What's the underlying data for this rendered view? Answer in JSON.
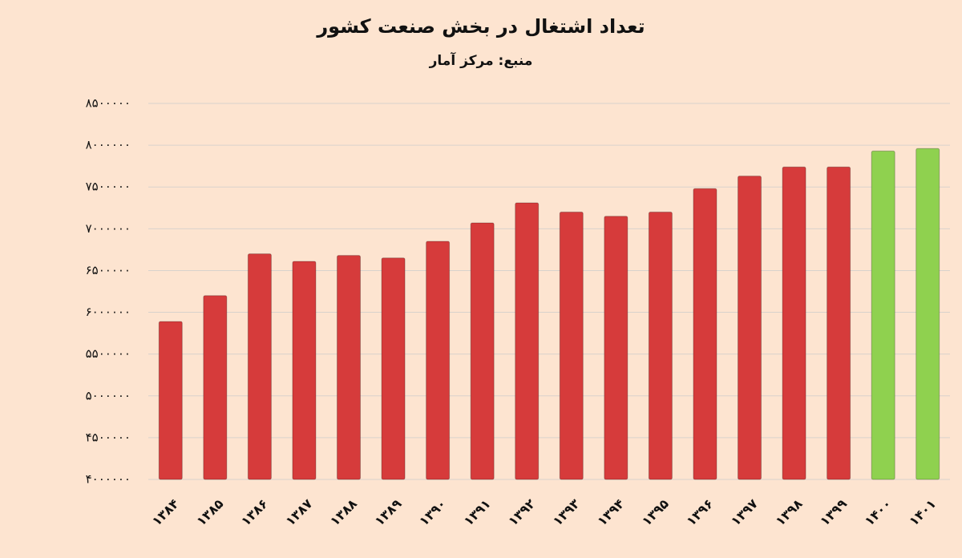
{
  "chart_data": {
    "type": "bar",
    "title": "تعداد اشتغال در بخش صنعت کشور",
    "subtitle": "منبع: مرکز آمار",
    "categories": [
      "۱۳۸۴",
      "۱۳۸۵",
      "۱۳۸۶",
      "۱۳۸۷",
      "۱۳۸۸",
      "۱۳۸۹",
      "۱۳۹۰",
      "۱۳۹۱",
      "۱۳۹۲",
      "۱۳۹۳",
      "۱۳۹۴",
      "۱۳۹۵",
      "۱۳۹۶",
      "۱۳۹۷",
      "۱۳۹۸",
      "۱۳۹۹",
      "۱۴۰۰",
      "۱۴۰۱"
    ],
    "values": [
      5890000,
      6200000,
      6700000,
      6610000,
      6680000,
      6650000,
      6850000,
      7070000,
      7310000,
      7200000,
      7150000,
      7200000,
      7480000,
      7630000,
      7740000,
      7740000,
      7930000,
      7960000
    ],
    "colors": [
      "#d63b3b",
      "#d63b3b",
      "#d63b3b",
      "#d63b3b",
      "#d63b3b",
      "#d63b3b",
      "#d63b3b",
      "#d63b3b",
      "#d63b3b",
      "#d63b3b",
      "#d63b3b",
      "#d63b3b",
      "#d63b3b",
      "#d63b3b",
      "#d63b3b",
      "#d63b3b",
      "#8fd14f",
      "#8fd14f"
    ],
    "ylim": [
      4000000,
      8500000
    ],
    "yticks": [
      {
        "value": 4000000,
        "label": "۴۰۰۰۰۰۰"
      },
      {
        "value": 4500000,
        "label": "۴۵۰۰۰۰۰"
      },
      {
        "value": 5000000,
        "label": "۵۰۰۰۰۰۰"
      },
      {
        "value": 5500000,
        "label": "۵۵۰۰۰۰۰"
      },
      {
        "value": 6000000,
        "label": "۶۰۰۰۰۰۰"
      },
      {
        "value": 6500000,
        "label": "۶۵۰۰۰۰۰"
      },
      {
        "value": 7000000,
        "label": "۷۰۰۰۰۰۰"
      },
      {
        "value": 7500000,
        "label": "۷۵۰۰۰۰۰"
      },
      {
        "value": 8000000,
        "label": "۸۰۰۰۰۰۰"
      },
      {
        "value": 8500000,
        "label": "۸۵۰۰۰۰۰"
      }
    ],
    "grid": true
  }
}
